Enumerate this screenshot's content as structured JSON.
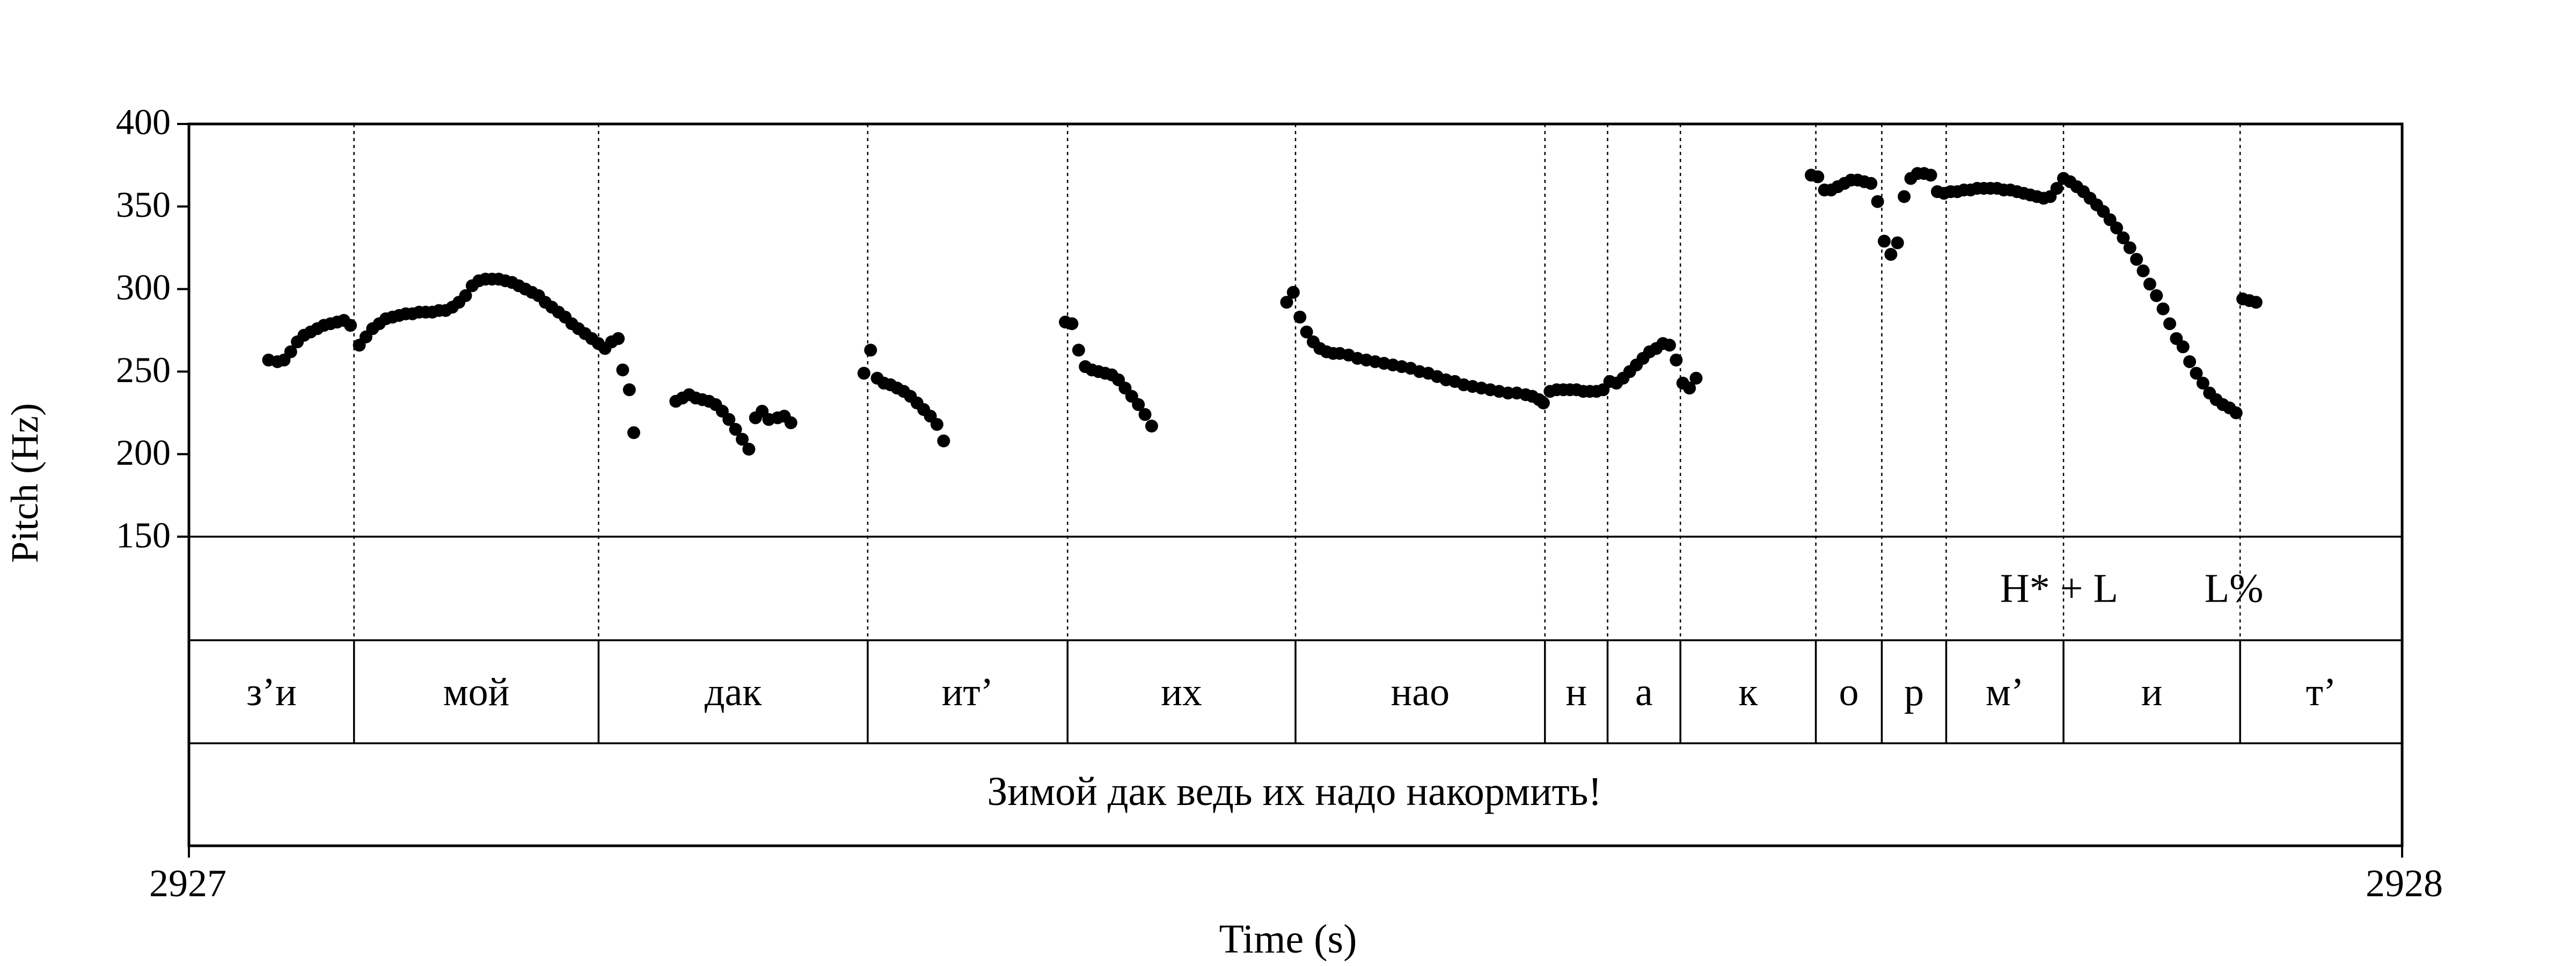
{
  "chart_data": {
    "type": "scatter",
    "title": "",
    "ylabel": "Pitch (Hz)",
    "xlabel": "Time (s)",
    "xlim": [
      0,
      1
    ],
    "ylim": [
      150,
      400
    ],
    "x_tick_labels": [
      "2927",
      "2928"
    ],
    "y_ticks": [
      150,
      200,
      250,
      300,
      350,
      400
    ],
    "y_tick_labels": [
      "150",
      "200",
      "250",
      "300",
      "350",
      "400"
    ],
    "grid": false,
    "dot_color": "#000000",
    "tier_tones": [
      {
        "label": "H* + L",
        "time": 0.845
      },
      {
        "label": "L%",
        "time": 0.924
      }
    ],
    "tier_segments": [
      {
        "label": "з’и",
        "start": 0.0,
        "end": 0.0746
      },
      {
        "label": "мой",
        "start": 0.0746,
        "end": 0.1851
      },
      {
        "label": "дак",
        "start": 0.1851,
        "end": 0.3067
      },
      {
        "label": "ит’",
        "start": 0.3067,
        "end": 0.397
      },
      {
        "label": "их",
        "start": 0.397,
        "end": 0.5
      },
      {
        "label": "нао",
        "start": 0.5,
        "end": 0.6127
      },
      {
        "label": "н",
        "start": 0.6127,
        "end": 0.641
      },
      {
        "label": "а",
        "start": 0.641,
        "end": 0.6739
      },
      {
        "label": "к",
        "start": 0.6739,
        "end": 0.7351
      },
      {
        "label": "о",
        "start": 0.7351,
        "end": 0.7649
      },
      {
        "label": "р",
        "start": 0.7649,
        "end": 0.794
      },
      {
        "label": "м’",
        "start": 0.794,
        "end": 0.847
      },
      {
        "label": "и",
        "start": 0.847,
        "end": 0.9268
      },
      {
        "label": "т’",
        "start": 0.9268,
        "end": 1.0
      }
    ],
    "boundaries": [
      0.0746,
      0.1851,
      0.3067,
      0.397,
      0.5,
      0.6127,
      0.641,
      0.6739,
      0.7351,
      0.7649,
      0.794,
      0.847,
      0.9268
    ],
    "sentence": "Зимой дак ведь их надо накормить!",
    "pitch_points": [
      [
        0.036,
        257
      ],
      [
        0.04,
        256
      ],
      [
        0.043,
        257
      ],
      [
        0.046,
        262
      ],
      [
        0.049,
        268
      ],
      [
        0.052,
        272
      ],
      [
        0.055,
        274
      ],
      [
        0.058,
        276
      ],
      [
        0.061,
        278
      ],
      [
        0.064,
        279
      ],
      [
        0.067,
        280
      ],
      [
        0.07,
        281
      ],
      [
        0.073,
        278
      ],
      [
        0.077,
        266
      ],
      [
        0.08,
        271
      ],
      [
        0.083,
        276
      ],
      [
        0.086,
        279
      ],
      [
        0.089,
        282
      ],
      [
        0.092,
        283
      ],
      [
        0.095,
        284
      ],
      [
        0.098,
        285
      ],
      [
        0.101,
        285
      ],
      [
        0.104,
        286
      ],
      [
        0.107,
        286
      ],
      [
        0.11,
        286
      ],
      [
        0.113,
        287
      ],
      [
        0.116,
        287
      ],
      [
        0.119,
        289
      ],
      [
        0.122,
        292
      ],
      [
        0.125,
        296
      ],
      [
        0.128,
        302
      ],
      [
        0.131,
        305
      ],
      [
        0.134,
        306
      ],
      [
        0.137,
        306
      ],
      [
        0.14,
        306
      ],
      [
        0.143,
        305
      ],
      [
        0.146,
        304
      ],
      [
        0.149,
        302
      ],
      [
        0.152,
        300
      ],
      [
        0.155,
        298
      ],
      [
        0.158,
        296
      ],
      [
        0.161,
        292
      ],
      [
        0.164,
        289
      ],
      [
        0.167,
        286
      ],
      [
        0.17,
        283
      ],
      [
        0.173,
        279
      ],
      [
        0.176,
        276
      ],
      [
        0.179,
        273
      ],
      [
        0.182,
        270
      ],
      [
        0.185,
        267
      ],
      [
        0.188,
        264
      ],
      [
        0.191,
        268
      ],
      [
        0.194,
        270
      ],
      [
        0.196,
        251
      ],
      [
        0.199,
        239
      ],
      [
        0.201,
        213
      ],
      [
        0.22,
        232
      ],
      [
        0.223,
        234
      ],
      [
        0.226,
        236
      ],
      [
        0.229,
        234
      ],
      [
        0.232,
        233
      ],
      [
        0.235,
        232
      ],
      [
        0.238,
        230
      ],
      [
        0.241,
        226
      ],
      [
        0.244,
        221
      ],
      [
        0.247,
        215
      ],
      [
        0.25,
        209
      ],
      [
        0.253,
        203
      ],
      [
        0.256,
        222
      ],
      [
        0.259,
        226
      ],
      [
        0.262,
        221
      ],
      [
        0.266,
        222
      ],
      [
        0.269,
        223
      ],
      [
        0.272,
        219
      ],
      [
        0.305,
        249
      ],
      [
        0.308,
        263
      ],
      [
        0.311,
        246
      ],
      [
        0.314,
        243
      ],
      [
        0.317,
        242
      ],
      [
        0.32,
        240
      ],
      [
        0.323,
        238
      ],
      [
        0.326,
        235
      ],
      [
        0.329,
        231
      ],
      [
        0.332,
        227
      ],
      [
        0.335,
        223
      ],
      [
        0.338,
        218
      ],
      [
        0.341,
        208
      ],
      [
        0.396,
        280
      ],
      [
        0.399,
        279
      ],
      [
        0.402,
        263
      ],
      [
        0.405,
        253
      ],
      [
        0.408,
        251
      ],
      [
        0.411,
        250
      ],
      [
        0.414,
        249
      ],
      [
        0.417,
        248
      ],
      [
        0.42,
        245
      ],
      [
        0.423,
        240
      ],
      [
        0.426,
        235
      ],
      [
        0.429,
        230
      ],
      [
        0.432,
        224
      ],
      [
        0.435,
        217
      ],
      [
        0.496,
        292
      ],
      [
        0.499,
        298
      ],
      [
        0.502,
        283
      ],
      [
        0.505,
        274
      ],
      [
        0.508,
        268
      ],
      [
        0.511,
        264
      ],
      [
        0.514,
        262
      ],
      [
        0.517,
        261
      ],
      [
        0.52,
        261
      ],
      [
        0.524,
        260
      ],
      [
        0.528,
        258
      ],
      [
        0.532,
        257
      ],
      [
        0.536,
        256
      ],
      [
        0.54,
        255
      ],
      [
        0.544,
        254
      ],
      [
        0.548,
        253
      ],
      [
        0.552,
        252
      ],
      [
        0.556,
        250
      ],
      [
        0.56,
        249
      ],
      [
        0.564,
        247
      ],
      [
        0.568,
        245
      ],
      [
        0.572,
        244
      ],
      [
        0.576,
        242
      ],
      [
        0.58,
        241
      ],
      [
        0.584,
        240
      ],
      [
        0.588,
        239
      ],
      [
        0.592,
        238
      ],
      [
        0.596,
        237
      ],
      [
        0.6,
        237
      ],
      [
        0.604,
        236
      ],
      [
        0.607,
        235
      ],
      [
        0.61,
        233
      ],
      [
        0.612,
        231
      ],
      [
        0.615,
        238
      ],
      [
        0.618,
        239
      ],
      [
        0.621,
        239
      ],
      [
        0.624,
        239
      ],
      [
        0.627,
        239
      ],
      [
        0.63,
        238
      ],
      [
        0.633,
        238
      ],
      [
        0.636,
        238
      ],
      [
        0.639,
        239
      ],
      [
        0.642,
        244
      ],
      [
        0.645,
        243
      ],
      [
        0.648,
        246
      ],
      [
        0.651,
        250
      ],
      [
        0.654,
        254
      ],
      [
        0.657,
        258
      ],
      [
        0.66,
        262
      ],
      [
        0.663,
        264
      ],
      [
        0.666,
        267
      ],
      [
        0.669,
        266
      ],
      [
        0.672,
        257
      ],
      [
        0.675,
        243
      ],
      [
        0.678,
        240
      ],
      [
        0.681,
        246
      ],
      [
        0.733,
        369
      ],
      [
        0.736,
        368
      ],
      [
        0.739,
        360
      ],
      [
        0.742,
        360
      ],
      [
        0.745,
        362
      ],
      [
        0.748,
        364
      ],
      [
        0.751,
        366
      ],
      [
        0.754,
        366
      ],
      [
        0.757,
        365
      ],
      [
        0.76,
        364
      ],
      [
        0.763,
        353
      ],
      [
        0.766,
        329
      ],
      [
        0.769,
        321
      ],
      [
        0.772,
        328
      ],
      [
        0.775,
        356
      ],
      [
        0.778,
        367
      ],
      [
        0.781,
        370
      ],
      [
        0.784,
        370
      ],
      [
        0.787,
        369
      ],
      [
        0.79,
        359
      ],
      [
        0.793,
        358
      ],
      [
        0.796,
        359
      ],
      [
        0.799,
        359
      ],
      [
        0.802,
        360
      ],
      [
        0.805,
        360
      ],
      [
        0.808,
        361
      ],
      [
        0.811,
        361
      ],
      [
        0.814,
        361
      ],
      [
        0.817,
        361
      ],
      [
        0.82,
        360
      ],
      [
        0.823,
        360
      ],
      [
        0.826,
        359
      ],
      [
        0.829,
        358
      ],
      [
        0.832,
        357
      ],
      [
        0.835,
        356
      ],
      [
        0.838,
        355
      ],
      [
        0.841,
        356
      ],
      [
        0.844,
        361
      ],
      [
        0.847,
        367
      ],
      [
        0.85,
        365
      ],
      [
        0.853,
        362
      ],
      [
        0.856,
        359
      ],
      [
        0.859,
        355
      ],
      [
        0.862,
        351
      ],
      [
        0.865,
        347
      ],
      [
        0.868,
        342
      ],
      [
        0.871,
        337
      ],
      [
        0.874,
        331
      ],
      [
        0.877,
        325
      ],
      [
        0.88,
        318
      ],
      [
        0.883,
        311
      ],
      [
        0.886,
        303
      ],
      [
        0.889,
        296
      ],
      [
        0.892,
        288
      ],
      [
        0.895,
        279
      ],
      [
        0.898,
        270
      ],
      [
        0.901,
        265
      ],
      [
        0.904,
        256
      ],
      [
        0.907,
        249
      ],
      [
        0.91,
        243
      ],
      [
        0.913,
        237
      ],
      [
        0.916,
        233
      ],
      [
        0.919,
        230
      ],
      [
        0.922,
        228
      ],
      [
        0.925,
        225
      ],
      [
        0.928,
        294
      ],
      [
        0.931,
        293
      ],
      [
        0.934,
        292
      ]
    ]
  }
}
